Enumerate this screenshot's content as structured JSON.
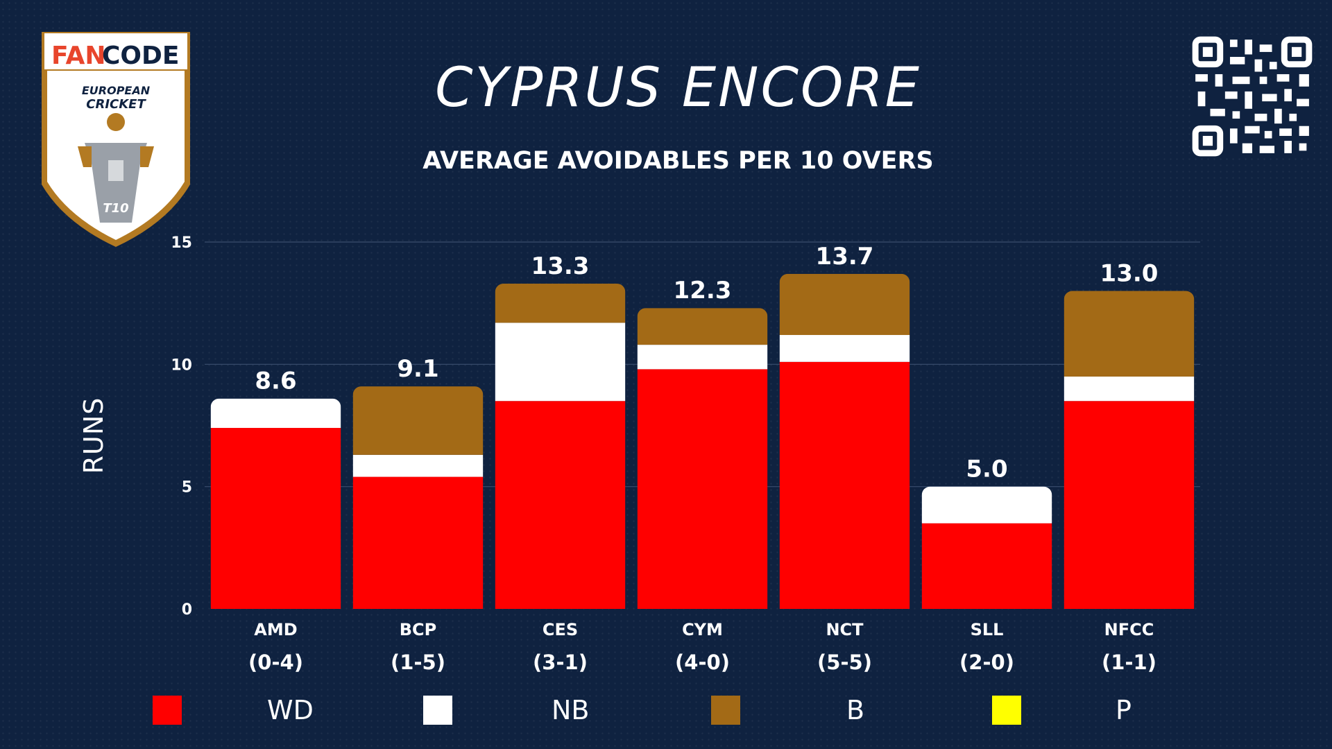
{
  "logo": {
    "brand_left": "FAN",
    "brand_right": "CODE",
    "line1": "EUROPEAN",
    "line2": "CRICKET",
    "badge": "T10",
    "icon": "fancode-ecs-shield-logo"
  },
  "qr": {
    "icon": "qr-code-icon"
  },
  "header": {
    "title": "CYPRUS ENCORE",
    "subtitle": "AVERAGE AVOIDABLES PER 10 OVERS"
  },
  "chart_data": {
    "type": "bar",
    "stacked": true,
    "title": "AVERAGE AVOIDABLES PER 10 OVERS",
    "xlabel": "",
    "ylabel": "RUNS",
    "ylim": [
      0,
      15
    ],
    "yticks": [
      "0",
      "5",
      "10",
      "15"
    ],
    "ytick_values": [
      0,
      5,
      10,
      15
    ],
    "grid": true,
    "legend_position": "bottom",
    "categories": [
      "AMD",
      "BCP",
      "CES",
      "CYM",
      "NCT",
      "SLL",
      "NFCC"
    ],
    "records": [
      "(0-4)",
      "(1-5)",
      "(3-1)",
      "(4-0)",
      "(5-5)",
      "(2-0)",
      "(1-1)"
    ],
    "totals": [
      "8.6",
      "9.1",
      "13.3",
      "12.3",
      "13.7",
      "5.0",
      "13.0"
    ],
    "series": [
      {
        "name": "WD",
        "color": "#ff0000",
        "values": [
          7.4,
          5.4,
          8.5,
          9.8,
          10.1,
          3.5,
          8.5
        ]
      },
      {
        "name": "NB",
        "color": "#ffffff",
        "values": [
          1.2,
          0.9,
          3.2,
          1.0,
          1.1,
          1.5,
          1.0
        ]
      },
      {
        "name": "B",
        "color": "#a36a16",
        "values": [
          0,
          2.8,
          1.6,
          1.5,
          2.5,
          0,
          3.5
        ]
      },
      {
        "name": "P",
        "color": "#ffff00",
        "values": [
          0,
          0,
          0,
          0,
          0,
          0,
          0
        ]
      }
    ]
  }
}
